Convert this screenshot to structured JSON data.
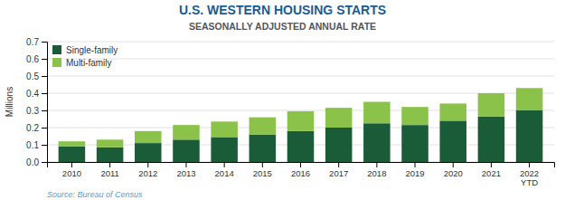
{
  "chart_data": {
    "type": "bar",
    "stacked": true,
    "title": "U.S. WESTERN HOUSING STARTS",
    "subtitle": "SEASONALLY ADJUSTED ANNUAL RATE",
    "ylabel": "Millions",
    "source": "Source: Bureau of Census",
    "categories": [
      "2010",
      "2011",
      "2012",
      "2013",
      "2014",
      "2015",
      "2016",
      "2017",
      "2018",
      "2019",
      "2020",
      "2021",
      "2022\nYTD"
    ],
    "series": [
      {
        "name": "Single-family",
        "color": "#1a5c38",
        "values": [
          0.09,
          0.085,
          0.11,
          0.13,
          0.145,
          0.16,
          0.18,
          0.2,
          0.225,
          0.215,
          0.24,
          0.265,
          0.3
        ]
      },
      {
        "name": "Multi-family",
        "color": "#8bc34a",
        "values": [
          0.03,
          0.045,
          0.07,
          0.085,
          0.09,
          0.1,
          0.115,
          0.115,
          0.125,
          0.105,
          0.1,
          0.135,
          0.13
        ]
      }
    ],
    "ylim": [
      0,
      0.7
    ],
    "yticks": [
      {
        "value": 0,
        "label": "0.0"
      },
      0.1,
      0.2,
      0.3,
      0.4,
      0.5,
      0.6,
      0.7
    ],
    "grid": true,
    "legend": "upper-left"
  }
}
